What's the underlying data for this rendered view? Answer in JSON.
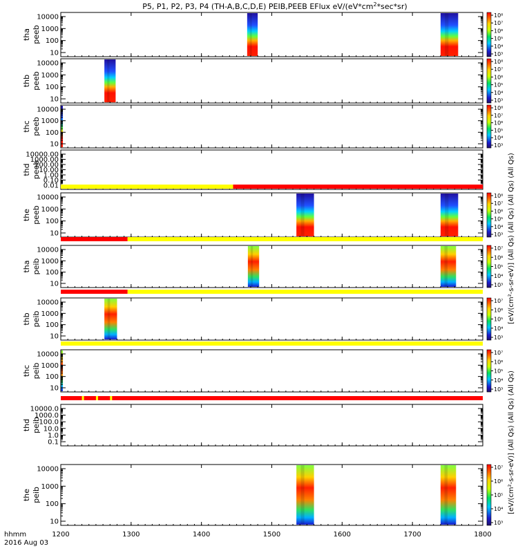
{
  "chart_data": {
    "type": "heatmap",
    "title": "P5, P1, P2, P3, P4 (TH-A,B,C,D,E) PEIB,PEEB EFlux eV/(eV*cm²*sec*sr)",
    "title_parts": {
      "a": "P5, P1, P2, P3, P4 (TH-A,B,C,D,E) PEIB,PEEB EFlux eV/(eV*cm",
      "sup": "2",
      "b": "*sec*sr)"
    },
    "xlabel_left": "hhmm",
    "date_label": "2016 Aug 03",
    "xlim": [
      1200,
      1800
    ],
    "xticks": [
      "1200",
      "1300",
      "1400",
      "1500",
      "1600",
      "1700",
      "1800"
    ],
    "xtick_values": [
      1200,
      1300,
      1400,
      1500,
      1600,
      1700,
      1800
    ],
    "right_labels": {
      "peeb_stack": "[eV/(cm²-s-sr-eV)] (All Qs) (All Qs) (All Qs) (All Qs)",
      "peib_stack": "[eV/(cm²-s-sr-eV)] (All Qs) (All Qs) (All Qs)",
      "bottom": "[eV/(cm²-s-sr-eV)]"
    },
    "colorbar_ticks_peeb": [
      "10³",
      "10⁴",
      "10⁵",
      "10⁶",
      "10⁷",
      "10⁸"
    ],
    "colorbar_ticks_peib": [
      "10³",
      "10⁴",
      "10⁵",
      "10⁶",
      "10⁷"
    ],
    "panels": [
      {
        "probe": "tha",
        "instrument": "peeb",
        "yticks": [
          "10",
          "100",
          "1000",
          "10000"
        ],
        "intervals": [
          [
            1465,
            1480
          ],
          [
            1740,
            1765
          ]
        ],
        "flag": null,
        "colorbar": "peeb"
      },
      {
        "probe": "thb",
        "instrument": "peeb",
        "yticks": [
          "10",
          "100",
          "1000",
          "10000"
        ],
        "intervals": [
          [
            1262,
            1278
          ]
        ],
        "flag": null,
        "colorbar": "peeb"
      },
      {
        "probe": "thc",
        "instrument": "peeb",
        "yticks": [
          "10",
          "100",
          "1000",
          "10000"
        ],
        "intervals": [
          [
            1200,
            1203
          ]
        ],
        "flag": null,
        "colorbar": "peeb"
      },
      {
        "probe": "thd",
        "instrument": "peeb",
        "yticks": [
          "0.01",
          "0.10",
          "1.00",
          "10.00",
          "100.00",
          "1000.00",
          "10000.00"
        ],
        "intervals": [],
        "flag": null,
        "colorbar": null
      },
      {
        "probe": "the",
        "instrument": "peeb",
        "yticks": [
          "10",
          "100",
          "1000",
          "10000"
        ],
        "intervals": [
          [
            1535,
            1560
          ],
          [
            1740,
            1765
          ]
        ],
        "flag": [
          {
            "from": 1200,
            "to": 1445,
            "color": "#ffff00"
          },
          {
            "from": 1445,
            "to": 1800,
            "color": "#ff0000"
          }
        ],
        "colorbar": "peeb"
      },
      {
        "probe": "tha",
        "instrument": "peib",
        "yticks": [
          "10",
          "100",
          "1000",
          "10000"
        ],
        "intervals": [
          [
            1466,
            1482
          ],
          [
            1740,
            1762
          ]
        ],
        "flag": [
          {
            "from": 1200,
            "to": 1295,
            "color": "#ff0000"
          },
          {
            "from": 1295,
            "to": 1800,
            "color": "#ffff00"
          }
        ],
        "colorbar": "peib"
      },
      {
        "probe": "thb",
        "instrument": "peib",
        "yticks": [
          "10",
          "100",
          "1000",
          "10000"
        ],
        "intervals": [
          [
            1262,
            1280
          ]
        ],
        "flag": [
          {
            "from": 1200,
            "to": 1295,
            "color": "#ff0000"
          },
          {
            "from": 1295,
            "to": 1800,
            "color": "#ffff00"
          }
        ],
        "colorbar": "peib"
      },
      {
        "probe": "thc",
        "instrument": "peib",
        "yticks": [
          "10",
          "100",
          "1000",
          "10000"
        ],
        "intervals": [
          [
            1200,
            1203
          ]
        ],
        "flag": [
          {
            "from": 1200,
            "to": 1800,
            "color": "#ffff00"
          }
        ],
        "colorbar": "peib"
      },
      {
        "probe": "thd",
        "instrument": "peib",
        "yticks": [
          "0.1",
          "1.0",
          "10.0",
          "100.0",
          "1000.0",
          "10000.0"
        ],
        "intervals": [],
        "flag": [
          {
            "from": 1200,
            "to": 1800,
            "color": "#ff0000"
          },
          {
            "from": 1230,
            "to": 1233,
            "color": "#ffff00"
          },
          {
            "from": 1250,
            "to": 1253,
            "color": "#ffff00"
          },
          {
            "from": 1270,
            "to": 1273,
            "color": "#ffff00"
          }
        ],
        "colorbar": null
      },
      {
        "probe": "the",
        "instrument": "peib",
        "yticks": [
          "10",
          "100",
          "1000",
          "10000"
        ],
        "intervals": [
          [
            1535,
            1560
          ],
          [
            1740,
            1762
          ]
        ],
        "flag": null,
        "colorbar": "peib"
      }
    ]
  }
}
